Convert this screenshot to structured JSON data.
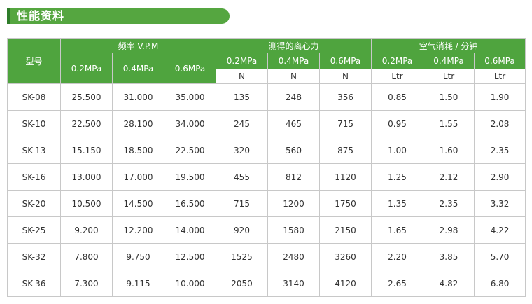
{
  "title": "性能资料",
  "table": {
    "model_label": "型号",
    "groups": [
      {
        "label": "频率 V.P.M",
        "pressures": [
          "0.2MPa",
          "0.4MPa",
          "0.6MPa"
        ],
        "units": [
          "",
          "",
          ""
        ]
      },
      {
        "label": "测得的离心力",
        "pressures": [
          "0.2MPa",
          "0.4MPa",
          "0.6MPa"
        ],
        "units": [
          "N",
          "N",
          "N"
        ]
      },
      {
        "label": "空气消耗 / 分钟",
        "pressures": [
          "0.2MPa",
          "0.4MPa",
          "0.6MPa"
        ],
        "units": [
          "Ltr",
          "Ltr",
          "Ltr"
        ]
      }
    ],
    "rows": [
      {
        "model": "SK-08",
        "values": [
          "25.500",
          "31.000",
          "35.000",
          "135",
          "248",
          "356",
          "0.85",
          "1.50",
          "1.90"
        ]
      },
      {
        "model": "SK-10",
        "values": [
          "22.500",
          "28.100",
          "34.000",
          "245",
          "465",
          "715",
          "0.95",
          "1.55",
          "2.08"
        ]
      },
      {
        "model": "SK-13",
        "values": [
          "15.150",
          "18.500",
          "22.500",
          "320",
          "560",
          "875",
          "1.00",
          "1.60",
          "2.35"
        ]
      },
      {
        "model": "SK-16",
        "values": [
          "13.000",
          "17.000",
          "19.500",
          "455",
          "812",
          "1120",
          "1.25",
          "2.12",
          "2.90"
        ]
      },
      {
        "model": "SK-20",
        "values": [
          "10.500",
          "14.500",
          "16.500",
          "715",
          "1200",
          "1750",
          "1.35",
          "2.35",
          "3.32"
        ]
      },
      {
        "model": "SK-25",
        "values": [
          "9.200",
          "12.200",
          "14.000",
          "920",
          "1580",
          "2150",
          "1.65",
          "2.98",
          "4.22"
        ]
      },
      {
        "model": "SK-32",
        "values": [
          "7.800",
          "9.750",
          "12.500",
          "1525",
          "2480",
          "3260",
          "2.20",
          "3.85",
          "5.70"
        ]
      },
      {
        "model": "SK-36",
        "values": [
          "7.300",
          "9.115",
          "10.000",
          "2050",
          "3140",
          "4120",
          "2.65",
          "4.82",
          "6.80"
        ]
      }
    ]
  },
  "colors": {
    "header_green": "#4fa43e",
    "title_green": "#55a640",
    "title_accent": "#2f7d2a"
  }
}
